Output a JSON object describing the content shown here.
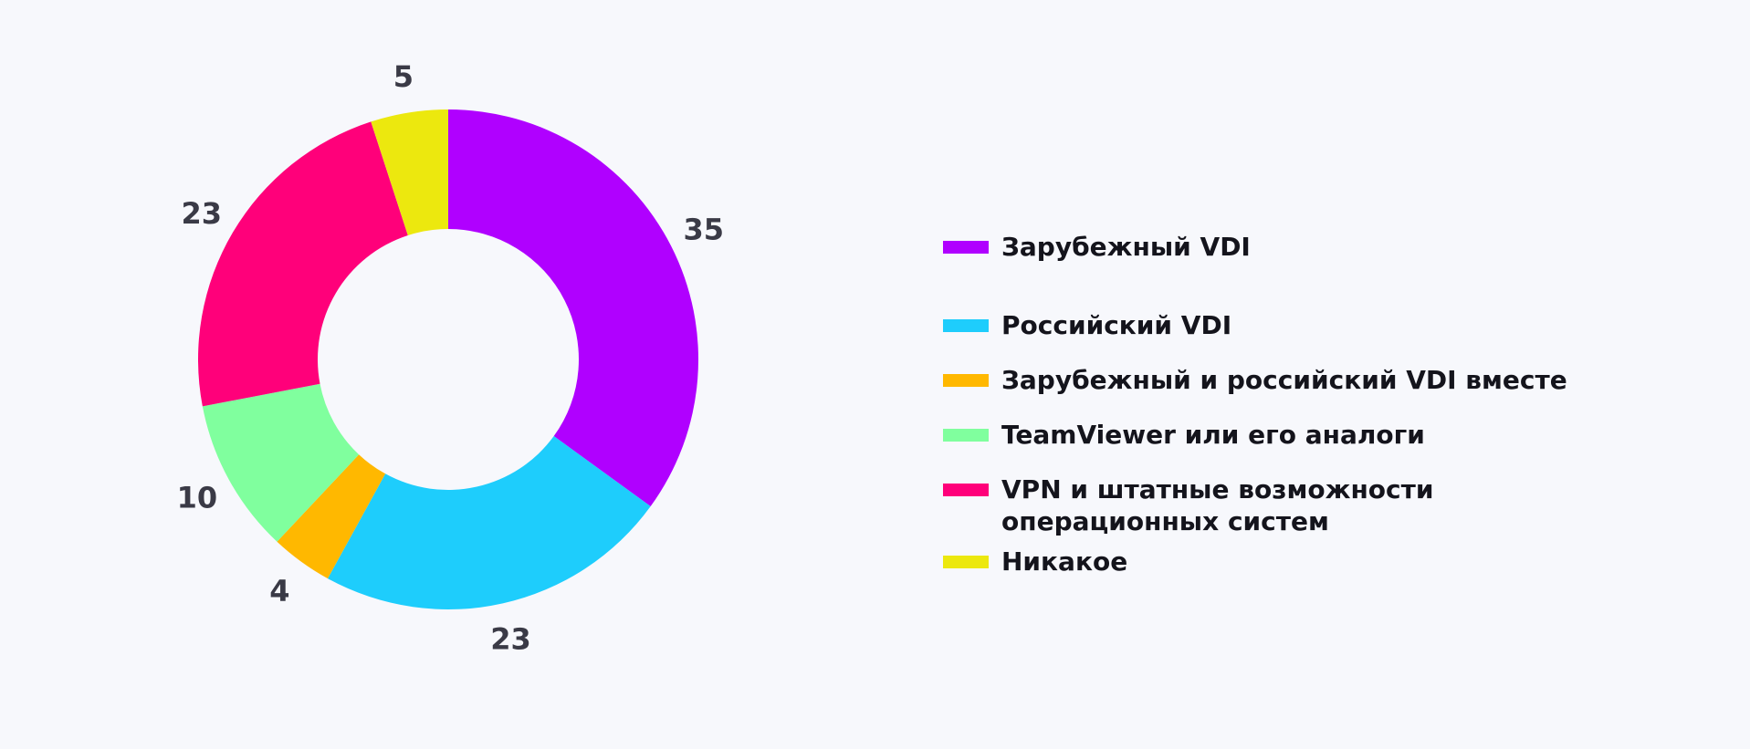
{
  "chart_data": {
    "type": "pie",
    "donut": true,
    "title": "",
    "categories": [
      "Зарубежный VDI",
      "Российский VDI",
      "Зарубежный и российский VDI вместе",
      "TeamViewer или его аналоги",
      "VPN и штатные возможности\nоперационных систем",
      "Никакое"
    ],
    "values": [
      35,
      23,
      4,
      10,
      23,
      5
    ],
    "value_labels": [
      "35",
      "23",
      "4",
      "10",
      "23",
      "5"
    ],
    "colors": [
      "#b000ff",
      "#1ecdfc",
      "#ffb800",
      "#80ff9e",
      "#ff007a",
      "#ece80e"
    ],
    "legend_position": "right"
  }
}
